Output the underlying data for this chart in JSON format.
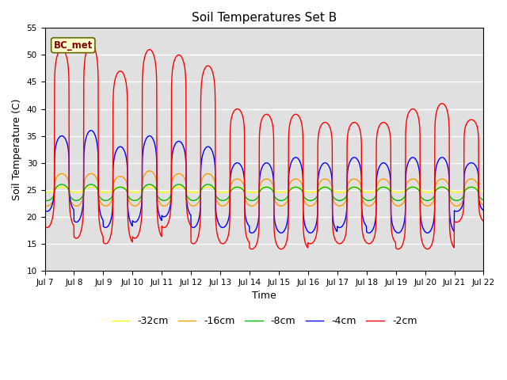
{
  "title": "Soil Temperatures Set B",
  "xlabel": "Time",
  "ylabel": "Soil Temperature (C)",
  "ylim": [
    10,
    55
  ],
  "yticks": [
    10,
    15,
    20,
    25,
    30,
    35,
    40,
    45,
    50,
    55
  ],
  "annotation": "BC_met",
  "series_colors": [
    "#ff0000",
    "#0000ff",
    "#00bb00",
    "#ff9900",
    "#ffff00"
  ],
  "series_labels": [
    "-2cm",
    "-4cm",
    "-8cm",
    "-16cm",
    "-32cm"
  ],
  "plot_bg": "#e0e0e0",
  "fig_bg": "#ffffff",
  "n_days": 15,
  "start_day": 7,
  "steps_per_day": 144,
  "peaks_2cm": [
    51,
    52,
    47,
    51,
    50,
    48,
    40,
    39,
    39,
    37.5,
    37.5,
    37.5,
    40,
    41,
    38
  ],
  "troughs_2cm": [
    18,
    16,
    15,
    16,
    18,
    15,
    15,
    14,
    14,
    15,
    15,
    15,
    14,
    14,
    19
  ],
  "peaks_4cm": [
    35,
    36,
    33,
    35,
    34,
    33,
    30,
    30,
    31,
    30,
    31,
    30,
    31,
    31,
    30
  ],
  "troughs_4cm": [
    21,
    19,
    18,
    19,
    20,
    18,
    18,
    17,
    17,
    17,
    18,
    17,
    17,
    17,
    21
  ],
  "peaks_8cm": [
    26,
    26,
    25.5,
    26,
    26,
    26,
    25.5,
    25.5,
    25.5,
    25.5,
    25.5,
    25.5,
    25.5,
    25.5,
    25.5
  ],
  "troughs_8cm": [
    23,
    23,
    23,
    23,
    23,
    23,
    23,
    23,
    23,
    23,
    23,
    23,
    23,
    23,
    23
  ],
  "peaks_16cm": [
    28,
    28,
    27.5,
    28.5,
    28,
    28,
    27,
    27,
    27,
    27,
    27,
    27,
    27,
    27,
    27
  ],
  "troughs_16cm": [
    22,
    22,
    22,
    22,
    22,
    22,
    22,
    22,
    22,
    22,
    22,
    22,
    22,
    22,
    22
  ],
  "peaks_32cm": [
    25.5,
    25.5,
    25.5,
    25.5,
    25.5,
    25.5,
    25.5,
    25.5,
    25.5,
    25.5,
    25.5,
    25.5,
    25.5,
    25.5,
    25.5
  ],
  "troughs_32cm": [
    24.5,
    24.5,
    24.5,
    24.5,
    24.5,
    24.5,
    24.5,
    24.5,
    24.5,
    24.5,
    24.5,
    24.5,
    24.5,
    24.5,
    24.5
  ],
  "peak_hour": 0.58,
  "rise_sharpness": 8.0
}
